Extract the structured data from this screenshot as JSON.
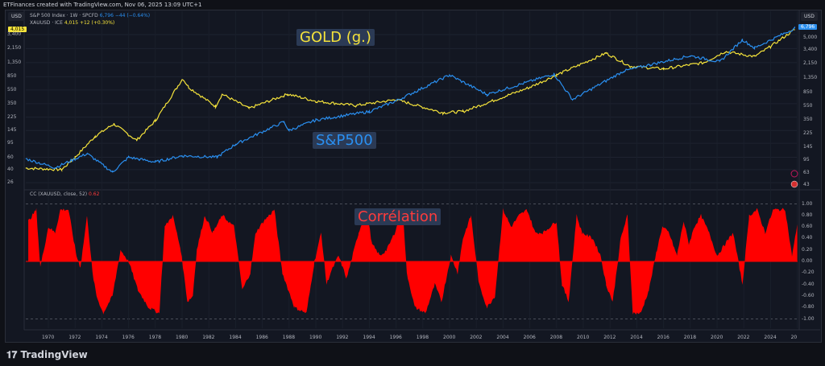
{
  "header": {
    "credit": "ETFinances created with TradingView.com, Nov 06, 2025 13:09 UTC+1"
  },
  "legend": {
    "spx": {
      "name": "S&P 500 Index · 1W · SPCFD",
      "value": "6,796",
      "change": "−44 (−0.64%)"
    },
    "gold": {
      "name": "XAUUSD · ICE",
      "value": "4,015",
      "change": "+12 (+0.30%)"
    },
    "cc": {
      "name": "CC (XAUUSD, close, 52)",
      "value": "0.62"
    }
  },
  "currency": "USD",
  "annotations": {
    "gold": "GOLD (g.)",
    "spx": "S&P500",
    "corr": "Corrélation"
  },
  "footer": {
    "logo": "TradingView"
  },
  "colors": {
    "gold": "#f5e33b",
    "spx": "#2a8ff0",
    "corr": "#ff0000",
    "bg": "#131722"
  },
  "chart_data": [
    {
      "type": "line",
      "scale": "log",
      "title": "",
      "left_axis_ticks": [
        "3,400",
        "2,150",
        "1,350",
        "850",
        "550",
        "350",
        "225",
        "145",
        "95",
        "60",
        "40",
        "26"
      ],
      "right_axis_ticks": [
        "5,000",
        "3,400",
        "2,150",
        "1,350",
        "850",
        "550",
        "350",
        "225",
        "145",
        "95",
        "63",
        "43"
      ],
      "series": [
        {
          "name": "XAUUSD",
          "axis": "left",
          "points": [
            [
              1968.3,
              42
            ],
            [
              1971,
              40
            ],
            [
              1972,
              60
            ],
            [
              1973.5,
              120
            ],
            [
              1974.9,
              180
            ],
            [
              1976.6,
              105
            ],
            [
              1978,
              200
            ],
            [
              1980.05,
              800
            ],
            [
              1980.5,
              600
            ],
            [
              1982.5,
              320
            ],
            [
              1983,
              480
            ],
            [
              1985,
              300
            ],
            [
              1987.9,
              480
            ],
            [
              1990,
              380
            ],
            [
              1993,
              330
            ],
            [
              1996,
              400
            ],
            [
              1999.5,
              260
            ],
            [
              2001,
              270
            ],
            [
              2006,
              600
            ],
            [
              2008,
              900
            ],
            [
              2011.7,
              1850
            ],
            [
              2013.5,
              1200
            ],
            [
              2016,
              1100
            ],
            [
              2019,
              1350
            ],
            [
              2020.6,
              1950
            ],
            [
              2022.8,
              1650
            ],
            [
              2024,
              2300
            ],
            [
              2025.8,
              4015
            ]
          ]
        },
        {
          "name": "S&P 500 Index",
          "axis": "right",
          "points": [
            [
              1968.3,
              100
            ],
            [
              1970.5,
              75
            ],
            [
              1972.9,
              118
            ],
            [
              1974.8,
              65
            ],
            [
              1976,
              105
            ],
            [
              1978,
              90
            ],
            [
              1980,
              110
            ],
            [
              1982.6,
              105
            ],
            [
              1984,
              160
            ],
            [
              1987.6,
              330
            ],
            [
              1988,
              250
            ],
            [
              1990,
              350
            ],
            [
              1994,
              460
            ],
            [
              1996,
              650
            ],
            [
              2000,
              1500
            ],
            [
              2002.8,
              800
            ],
            [
              2007.8,
              1550
            ],
            [
              2009.2,
              680
            ],
            [
              2013,
              1700
            ],
            [
              2015,
              2100
            ],
            [
              2018,
              2800
            ],
            [
              2020.2,
              2300
            ],
            [
              2021.9,
              4700
            ],
            [
              2022.8,
              3600
            ],
            [
              2025.8,
              6796
            ]
          ]
        }
      ]
    },
    {
      "type": "area",
      "title": "",
      "ylim": [
        -1,
        1
      ],
      "y_ticks": [
        "1.00",
        "0.80",
        "0.60",
        "0.40",
        "0.20",
        "0.00",
        "-0.20",
        "-0.40",
        "-0.60",
        "-0.80",
        "-1.00"
      ],
      "x_ticks": [
        "1970",
        "1972",
        "1974",
        "1976",
        "1978",
        "1980",
        "1982",
        "1984",
        "1986",
        "1988",
        "1990",
        "1992",
        "1994",
        "1996",
        "1998",
        "2000",
        "2002",
        "2004",
        "2006",
        "2008",
        "2010",
        "2012",
        "2014",
        "2016",
        "2018",
        "2020",
        "2022",
        "2024",
        "20"
      ],
      "series": [
        {
          "name": "CC (XAUUSD, close, 52)",
          "points": [
            [
              1968.5,
              0.7
            ],
            [
              1969.1,
              0.9
            ],
            [
              1969.4,
              -0.1
            ],
            [
              1970,
              0.6
            ],
            [
              1970.5,
              0.5
            ],
            [
              1970.9,
              0.9
            ],
            [
              1971.5,
              0.9
            ],
            [
              1972.1,
              0.1
            ],
            [
              1972.4,
              -0.1
            ],
            [
              1972.9,
              0.8
            ],
            [
              1973.3,
              -0.2
            ],
            [
              1973.6,
              -0.6
            ],
            [
              1974.1,
              -0.9
            ],
            [
              1974.8,
              -0.6
            ],
            [
              1975.4,
              0.2
            ],
            [
              1976,
              0.0
            ],
            [
              1976.7,
              -0.5
            ],
            [
              1977.5,
              -0.8
            ],
            [
              1978.3,
              -0.9
            ],
            [
              1978.7,
              0.6
            ],
            [
              1979.3,
              0.8
            ],
            [
              1979.9,
              0.2
            ],
            [
              1980.4,
              -0.7
            ],
            [
              1980.8,
              -0.6
            ],
            [
              1981.1,
              0.2
            ],
            [
              1981.7,
              0.8
            ],
            [
              1982.3,
              0.5
            ],
            [
              1983,
              0.8
            ],
            [
              1983.9,
              0.6
            ],
            [
              1984.5,
              -0.5
            ],
            [
              1985.1,
              -0.2
            ],
            [
              1985.5,
              0.5
            ],
            [
              1986.1,
              0.7
            ],
            [
              1986.9,
              0.9
            ],
            [
              1987.5,
              -0.2
            ],
            [
              1988.4,
              -0.8
            ],
            [
              1989.3,
              -0.9
            ],
            [
              1989.9,
              0.0
            ],
            [
              1990.4,
              0.5
            ],
            [
              1990.8,
              -0.4
            ],
            [
              1991.1,
              -0.2
            ],
            [
              1991.7,
              0.1
            ],
            [
              1992.3,
              -0.3
            ],
            [
              1993.2,
              0.5
            ],
            [
              1993.8,
              0.9
            ],
            [
              1994.2,
              0.3
            ],
            [
              1994.8,
              0.1
            ],
            [
              1995.3,
              0.2
            ],
            [
              1995.9,
              0.5
            ],
            [
              1996.5,
              0.9
            ],
            [
              1996.8,
              -0.2
            ],
            [
              1997.4,
              -0.8
            ],
            [
              1998.2,
              -0.9
            ],
            [
              1998.9,
              -0.4
            ],
            [
              1999.4,
              -0.7
            ],
            [
              2000.1,
              0.1
            ],
            [
              2000.6,
              -0.2
            ],
            [
              2001,
              0.4
            ],
            [
              2001.6,
              0.8
            ],
            [
              2002.2,
              -0.4
            ],
            [
              2002.8,
              -0.8
            ],
            [
              2003.4,
              -0.6
            ],
            [
              2004,
              0.9
            ],
            [
              2004.6,
              0.6
            ],
            [
              2005.2,
              0.8
            ],
            [
              2005.8,
              0.9
            ],
            [
              2006.4,
              0.5
            ],
            [
              2007,
              0.5
            ],
            [
              2008,
              0.7
            ],
            [
              2008.4,
              -0.4
            ],
            [
              2008.9,
              -0.7
            ],
            [
              2009.5,
              0.8
            ],
            [
              2009.9,
              0.5
            ],
            [
              2010.7,
              0.4
            ],
            [
              2011.3,
              0.1
            ],
            [
              2011.7,
              -0.4
            ],
            [
              2012.2,
              -0.7
            ],
            [
              2012.8,
              0.4
            ],
            [
              2013.3,
              0.8
            ],
            [
              2013.7,
              -0.9
            ],
            [
              2014.3,
              -0.9
            ],
            [
              2014.9,
              -0.5
            ],
            [
              2015.5,
              0.2
            ],
            [
              2015.9,
              0.6
            ],
            [
              2016.4,
              0.5
            ],
            [
              2017,
              0.1
            ],
            [
              2017.5,
              0.7
            ],
            [
              2017.9,
              0.3
            ],
            [
              2018.3,
              0.6
            ],
            [
              2018.8,
              0.8
            ],
            [
              2019.4,
              0.5
            ],
            [
              2020,
              0.1
            ],
            [
              2020.6,
              0.3
            ],
            [
              2021.2,
              0.5
            ],
            [
              2021.9,
              -0.4
            ],
            [
              2022.4,
              0.8
            ],
            [
              2023,
              0.9
            ],
            [
              2023.6,
              0.5
            ],
            [
              2024.2,
              0.9
            ],
            [
              2025.1,
              0.9
            ],
            [
              2025.6,
              0.1
            ],
            [
              2026,
              0.62
            ]
          ]
        }
      ]
    }
  ]
}
